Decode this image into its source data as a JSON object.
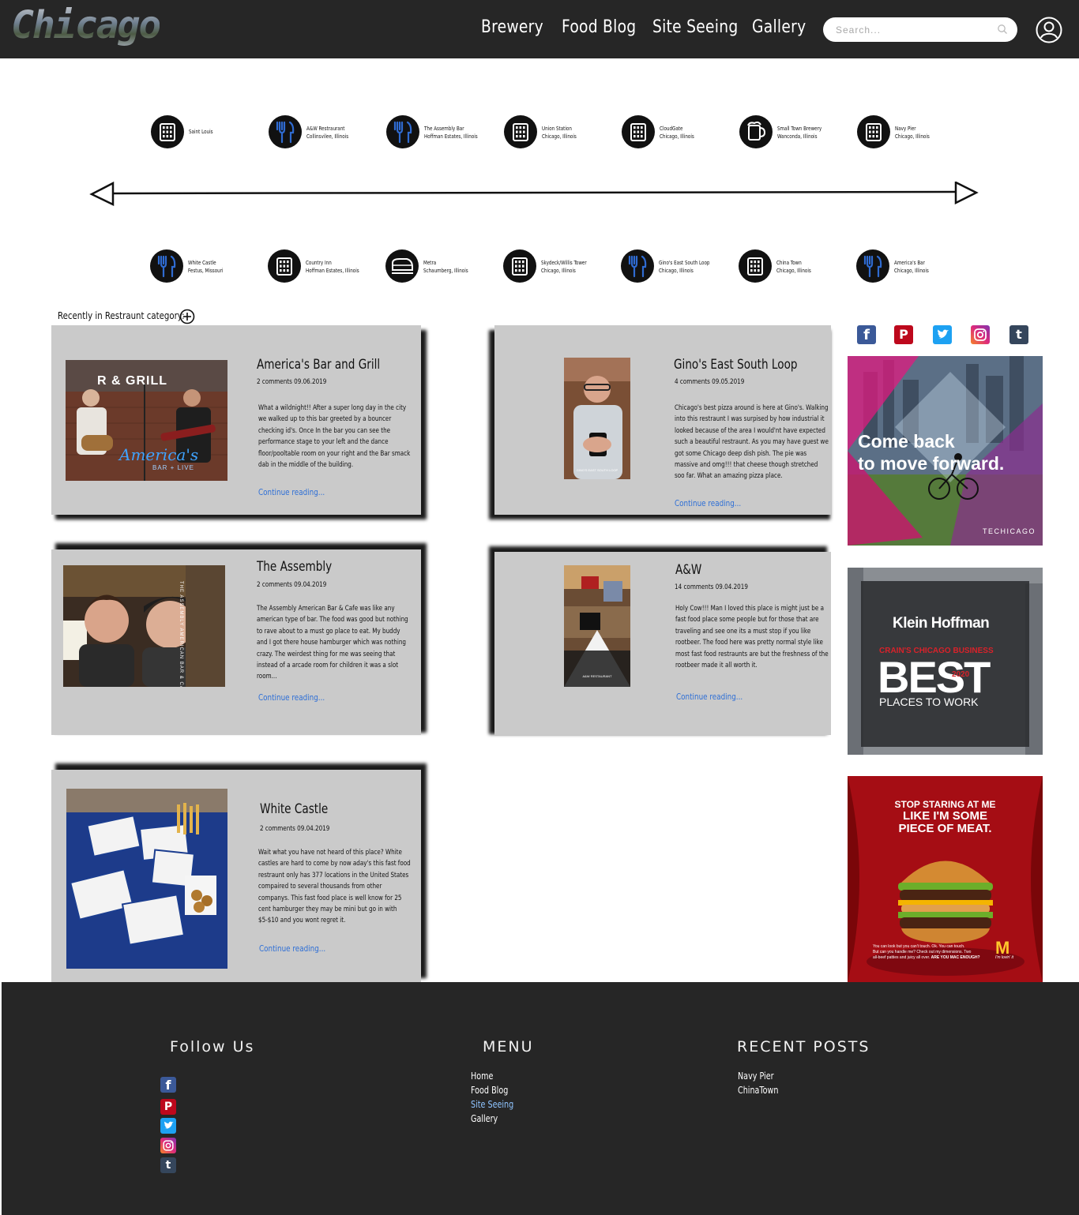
{
  "header": {
    "logo": "Chicago",
    "nav": [
      {
        "label": "Brewery"
      },
      {
        "label": "Food Blog"
      },
      {
        "label": "Site Seeing"
      },
      {
        "label": "Gallery"
      }
    ],
    "search_placeholder": "Search..."
  },
  "timeline": {
    "top": [
      {
        "icon": "building-icon",
        "line1": "Saint Louis",
        "line2": ""
      },
      {
        "icon": "fork-knife-icon",
        "line1": "A&W Restraurant",
        "line2": "Collinsvilee, Illinois"
      },
      {
        "icon": "fork-knife-icon",
        "line1": "The Assembly Bar",
        "line2": "Hoffman Estates, Illinois"
      },
      {
        "icon": "building-icon",
        "line1": "Union Station",
        "line2": "Chicago, Illinois"
      },
      {
        "icon": "building-icon",
        "line1": "CloudGate",
        "line2": "Chicago, Illinois"
      },
      {
        "icon": "beer-mug-icon",
        "line1": "Small Town Brewery",
        "line2": "Wanconda, Illinois"
      },
      {
        "icon": "building-icon",
        "line1": "Navy Pier",
        "line2": "Chicago, Illinois"
      }
    ],
    "bottom": [
      {
        "icon": "fork-knife-icon",
        "line1": "White Castle",
        "line2": "Festus, Missouri"
      },
      {
        "icon": "building-icon",
        "line1": "Country Inn",
        "line2": "Hoffman Estates, Illinois"
      },
      {
        "icon": "train-icon",
        "line1": "Metra",
        "line2": "Schaumberg, Illinois"
      },
      {
        "icon": "building-icon",
        "line1": "Skydeck/Willis Tower",
        "line2": "Chicago, Illinois"
      },
      {
        "icon": "fork-knife-icon",
        "line1": "Gino's East South Loop",
        "line2": "Chicago, Illinois"
      },
      {
        "icon": "building-icon",
        "line1": "China Town",
        "line2": "Chicago, Illinois"
      },
      {
        "icon": "fork-knife-icon",
        "line1": "America's Bar",
        "line2": "Chicago, Illinois"
      }
    ]
  },
  "category_label": "Recently in Restraunt category:",
  "posts": [
    {
      "title": "America's Bar and Grill",
      "meta": "2 comments  09.06.2019",
      "body": "What a wildnight!! After a super long day in the city we walked up to this bar greeted by a bouncer checking id's. Once In the bar you can see the performance stage to your left and the dance floor/pooltable room on your right and the Bar smack dab in the middle of the building.",
      "more": "Continue reading..."
    },
    {
      "title": "Gino's East South Loop",
      "meta": "4 comments  09.05.2019",
      "body": "Chicago's best pizza around is here at Gino's. Walking into this restraunt I was surpised by how industrial it looked because of the area I would'nt have expected such a beautiful restraunt. As you may have guest we got some Chicago deep dish pish. The pie was massive and omg!!! that cheese though stretched soo far. What an amazing pizza place.",
      "more": "Continue reading..."
    },
    {
      "title": "The Assembly",
      "meta": "2 comments  09.04.2019",
      "body": "The Assembly American Bar & Cafe was like any american type of bar. The food was good but nothing to rave about to a must go place to eat. My buddy and I got there house hamburger which was nothing crazy. The weirdest thing for me was seeing that instead of a arcade room for children it was a slot room...",
      "more": "Continue reading..."
    },
    {
      "title": "A&W",
      "meta": "14 comments  09.04.2019",
      "body": "Holy Cow!!! Man I loved this place is might just be a fast food place some people but for those that are traveling and see one its a must stop if you like rootbeer. The food here was pretty normal style like most fast food restraunts are but the freshness of the rootbeer made it all worth it.",
      "more": "Continue reading..."
    },
    {
      "title": "White Castle",
      "meta": "2 comments  09.04.2019",
      "body": "Wait what you have not heard of this place? White castles are hard to come by now aday's this fast food restraunt only has 377 locations in the United States compaired to several thousands from other companys. This fast food place is well know for 25 cent hamburger they may be mini but go in with $5-$10 and you wont regret it.",
      "more": "Continue reading..."
    }
  ],
  "images": {
    "americas": {
      "sign_top": "R & GRILL",
      "sign_script": "America's",
      "sign_sub": "BAR + LIVE"
    },
    "assembly": {
      "sign": "THE ASSEMBLY AMERICAN BAR & CAFE"
    },
    "ginos": {
      "caption": "GINO'S EAST SOUTH LOOP"
    },
    "aw": {
      "caption": "A&W RESTAURANT"
    }
  },
  "ads": {
    "techicago": {
      "headline_1": "Come back",
      "headline_2": "to move forward.",
      "brand": "TECHICAGO"
    },
    "klein": {
      "brand": "Klein Hoffman",
      "publisher": "CRAIN'S CHICAGO BUSINESS",
      "best": "BEST",
      "year": "2020",
      "sub": "PLACES TO WORK"
    },
    "mcd": {
      "headline_1": "STOP STARING AT ME",
      "headline_2": "LIKE I'M SOME",
      "headline_3": "PIECE OF MEAT.",
      "small_1": "You can look but you can't touch. Ok. You can touch.",
      "small_2": "But can you handle me? Check out my dimensions. Two",
      "small_3": "all-beef patties and juicy all over.",
      "cta": "ARE YOU MAC ENOUGH?",
      "slogan": "I'm lovin' it"
    }
  },
  "footer": {
    "follow_title": "Follow Us",
    "menu_title": "MENU",
    "menu": [
      "Home",
      "Food Blog",
      "Site Seeing",
      "Gallery"
    ],
    "recent_title": "RECENT POSTS",
    "recent": [
      "Navy Pier",
      "ChinaTown"
    ]
  },
  "colors": {
    "header_bg": "#262626",
    "card_bg": "#cacaca",
    "link": "#2e6fd6",
    "icon_accent": "#2f6bd1",
    "facebook": "#3b5998",
    "pinterest": "#bd081c",
    "twitter": "#1da1f2",
    "instagram": "#e1306c",
    "tumblr": "#35465c"
  }
}
